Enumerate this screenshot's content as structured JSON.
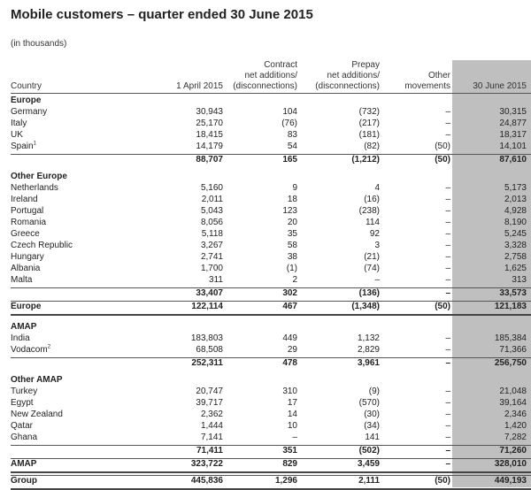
{
  "title": "Mobile customers – quarter ended 30 June 2015",
  "subtitle": "(in thousands)",
  "headers": {
    "country": "Country",
    "opening": "1 April 2015",
    "contract": [
      "Contract",
      "net additions/",
      "(disconnections)"
    ],
    "prepay": [
      "Prepay",
      "net additions/",
      "(disconnections)"
    ],
    "other": [
      "Other",
      "movements"
    ],
    "closing": "30 June 2015"
  },
  "rows": [
    {
      "type": "section",
      "label": "Europe"
    },
    {
      "type": "data",
      "label": "Germany",
      "v": [
        "30,943",
        "104",
        "(732)",
        "–",
        "30,315"
      ]
    },
    {
      "type": "data",
      "label": "Italy",
      "v": [
        "25,170",
        "(76)",
        "(217)",
        "–",
        "24,877"
      ]
    },
    {
      "type": "data",
      "label": "UK",
      "v": [
        "18,415",
        "83",
        "(181)",
        "–",
        "18,317"
      ]
    },
    {
      "type": "data",
      "label": "Spain",
      "sup": "1",
      "v": [
        "14,179",
        "54",
        "(82)",
        "(50)",
        "14,101"
      ]
    },
    {
      "type": "subtotal",
      "label": "",
      "v": [
        "88,707",
        "165",
        "(1,212)",
        "(50)",
        "87,610"
      ]
    },
    {
      "type": "section",
      "label": "Other Europe"
    },
    {
      "type": "data",
      "label": "Netherlands",
      "v": [
        "5,160",
        "9",
        "4",
        "–",
        "5,173"
      ]
    },
    {
      "type": "data",
      "label": "Ireland",
      "v": [
        "2,011",
        "18",
        "(16)",
        "–",
        "2,013"
      ]
    },
    {
      "type": "data",
      "label": "Portugal",
      "v": [
        "5,043",
        "123",
        "(238)",
        "–",
        "4,928"
      ]
    },
    {
      "type": "data",
      "label": "Romania",
      "v": [
        "8,056",
        "20",
        "114",
        "–",
        "8,190"
      ]
    },
    {
      "type": "data",
      "label": "Greece",
      "v": [
        "5,118",
        "35",
        "92",
        "–",
        "5,245"
      ]
    },
    {
      "type": "data",
      "label": "Czech Republic",
      "v": [
        "3,267",
        "58",
        "3",
        "–",
        "3,328"
      ]
    },
    {
      "type": "data",
      "label": "Hungary",
      "v": [
        "2,741",
        "38",
        "(21)",
        "–",
        "2,758"
      ]
    },
    {
      "type": "data",
      "label": "Albania",
      "v": [
        "1,700",
        "(1)",
        "(74)",
        "–",
        "1,625"
      ]
    },
    {
      "type": "data",
      "label": "Malta",
      "v": [
        "311",
        "2",
        "–",
        "–",
        "313"
      ]
    },
    {
      "type": "subtotal",
      "label": "",
      "v": [
        "33,407",
        "302",
        "(136)",
        "–",
        "33,573"
      ]
    },
    {
      "type": "total",
      "label": "Europe",
      "v": [
        "122,114",
        "467",
        "(1,348)",
        "(50)",
        "121,183"
      ]
    },
    {
      "type": "section",
      "label": "AMAP"
    },
    {
      "type": "data",
      "label": "India",
      "v": [
        "183,803",
        "449",
        "1,132",
        "–",
        "185,384"
      ]
    },
    {
      "type": "data",
      "label": "Vodacom",
      "sup": "2",
      "v": [
        "68,508",
        "29",
        "2,829",
        "–",
        "71,366"
      ]
    },
    {
      "type": "subtotal",
      "label": "",
      "v": [
        "252,311",
        "478",
        "3,961",
        "–",
        "256,750"
      ]
    },
    {
      "type": "section",
      "label": "Other AMAP"
    },
    {
      "type": "data",
      "label": "Turkey",
      "v": [
        "20,747",
        "310",
        "(9)",
        "–",
        "21,048"
      ]
    },
    {
      "type": "data",
      "label": "Egypt",
      "v": [
        "39,717",
        "17",
        "(570)",
        "–",
        "39,164"
      ]
    },
    {
      "type": "data",
      "label": "New Zealand",
      "v": [
        "2,362",
        "14",
        "(30)",
        "–",
        "2,346"
      ]
    },
    {
      "type": "data",
      "label": "Qatar",
      "v": [
        "1,444",
        "10",
        "(34)",
        "–",
        "1,420"
      ]
    },
    {
      "type": "data",
      "label": "Ghana",
      "v": [
        "7,141",
        "–",
        "141",
        "–",
        "7,282"
      ]
    },
    {
      "type": "subtotal",
      "label": "",
      "v": [
        "71,411",
        "351",
        "(502)",
        "–",
        "71,260"
      ]
    },
    {
      "type": "total",
      "label": "AMAP",
      "v": [
        "323,722",
        "829",
        "3,459",
        "–",
        "328,010"
      ]
    },
    {
      "type": "total",
      "label": "Group",
      "v": [
        "445,836",
        "1,296",
        "2,111",
        "(50)",
        "449,193"
      ]
    }
  ]
}
